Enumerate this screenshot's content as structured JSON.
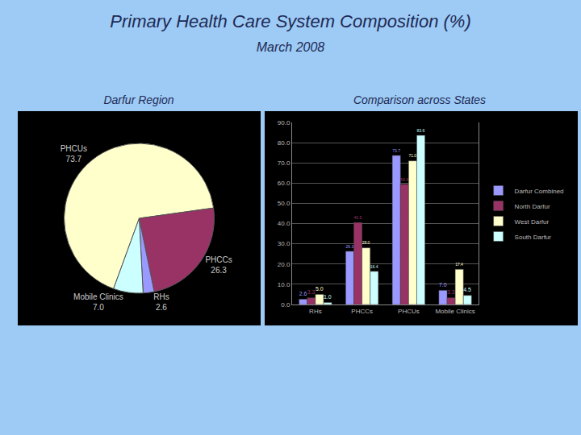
{
  "title": "Primary Health Care System Composition (%)",
  "subtitle": "March 2008",
  "chart_data": [
    {
      "type": "pie",
      "title": "Darfur Region",
      "categories": [
        "PHCUs",
        "PHCCs",
        "RHs",
        "Mobile Clinics"
      ],
      "values": [
        73.7,
        26.3,
        2.6,
        7.0
      ],
      "value_labels": [
        "73.7",
        "26.3",
        "2.6",
        "7.0"
      ],
      "colors": [
        "#ffffcc",
        "#993366",
        "#9999ff",
        "#ccffff"
      ],
      "data_labels": true
    },
    {
      "type": "bar",
      "title": "Comparison across States",
      "categories": [
        "RHs",
        "PHCCs",
        "PHCUs",
        "Mobile Clinics"
      ],
      "series": [
        {
          "name": "Darfur Combined",
          "color": "#9999ff",
          "values": [
            2.6,
            26.3,
            73.7,
            7.0
          ],
          "value_labels": [
            "2.6",
            "26.3",
            "73.7",
            "7.0"
          ]
        },
        {
          "name": "North Darfur",
          "color": "#993366",
          "values": [
            3.3,
            40.5,
            59.4,
            3.3
          ],
          "value_labels": [
            "3.3",
            "40.5",
            "59.4",
            "3.3"
          ]
        },
        {
          "name": "West Darfur",
          "color": "#ffffcc",
          "values": [
            5.0,
            28.0,
            71.0,
            17.4
          ],
          "value_labels": [
            "5.0",
            "28.0",
            "71.0",
            "17.4"
          ]
        },
        {
          "name": "South Darfur",
          "color": "#ccffff",
          "values": [
            1.0,
            16.4,
            83.6,
            4.5
          ],
          "value_labels": [
            "1.0",
            "16.4",
            "83.6",
            "4.5"
          ]
        }
      ],
      "ylim": [
        0,
        90
      ],
      "yticks": [
        {
          "value": 0,
          "label": "0.0"
        },
        {
          "value": 10,
          "label": "10.0"
        },
        {
          "value": 20,
          "label": "20.0"
        },
        {
          "value": 30,
          "label": "30.0"
        },
        {
          "value": 40,
          "label": "40.0"
        },
        {
          "value": 50,
          "label": "50.0"
        },
        {
          "value": 60,
          "label": "60.0"
        },
        {
          "value": 70,
          "label": "70.0"
        },
        {
          "value": 80,
          "label": "80.0"
        },
        {
          "value": 90,
          "label": "90.0"
        }
      ],
      "grid": true,
      "legend": "right",
      "data_labels": true
    }
  ]
}
